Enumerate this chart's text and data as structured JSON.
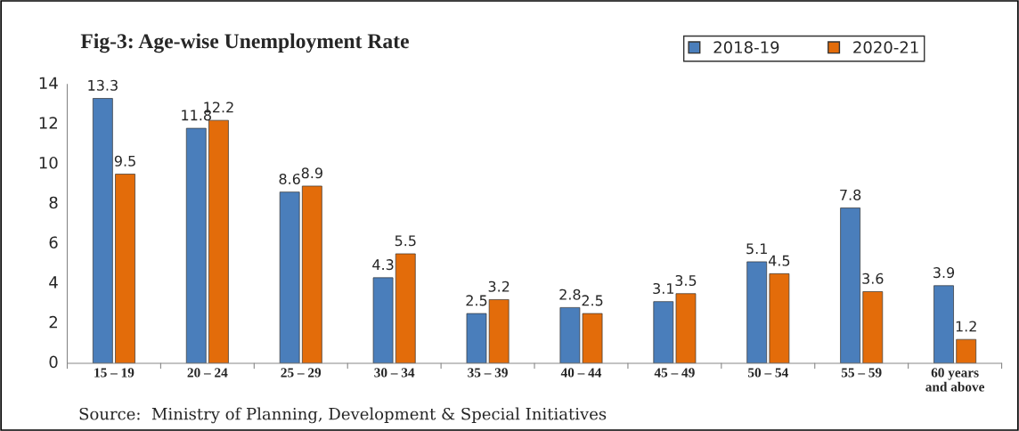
{
  "chart_data": {
    "type": "bar",
    "title": "Fig-3: Age-wise Unemployment Rate",
    "categories": [
      "15 – 19",
      "20 – 24",
      "25 – 29",
      "30 – 34",
      "35 – 39",
      "40 – 44",
      "45 – 49",
      "50 – 54",
      "55 – 59",
      "60 years\nand above"
    ],
    "series": [
      {
        "name": "2018-19",
        "color": "#4a7ebb",
        "values": [
          13.3,
          11.8,
          8.6,
          4.3,
          2.5,
          2.8,
          3.1,
          5.1,
          7.8,
          3.9
        ]
      },
      {
        "name": "2020-21",
        "color": "#e36c0a",
        "values": [
          9.5,
          12.2,
          8.9,
          5.5,
          3.2,
          2.5,
          3.5,
          4.5,
          3.6,
          1.2
        ]
      }
    ],
    "ylim": [
      0,
      14
    ],
    "yticks": [
      0,
      2,
      4,
      6,
      8,
      10,
      12,
      14
    ],
    "grid": false,
    "legend": "top right",
    "data_labels": true,
    "annotations": [
      "Source:  Ministry of Planning, Development & Special Initiatives"
    ]
  }
}
